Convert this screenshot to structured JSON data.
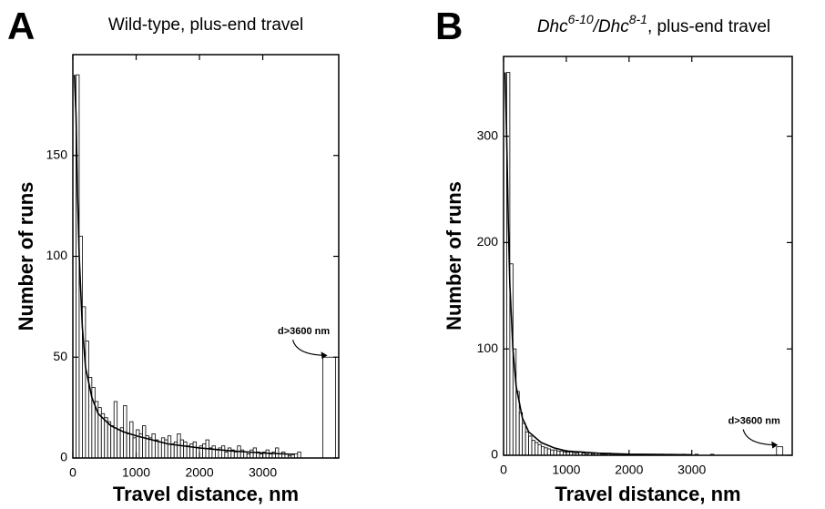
{
  "chart_data": [
    {
      "type": "histogram",
      "panel_label": "A",
      "title": "Wild-type, plus-end travel",
      "xlabel": "Travel distance, nm",
      "ylabel": "Number of runs",
      "bins": [
        0,
        50,
        100,
        150,
        200,
        250,
        300,
        350,
        400,
        450,
        500,
        550,
        600,
        650,
        700,
        750,
        800,
        850,
        900,
        950,
        1000,
        1050,
        1100,
        1150,
        1200,
        1250,
        1300,
        1350,
        1400,
        1450,
        1500,
        1550,
        1600,
        1650,
        1700,
        1750,
        1800,
        1850,
        1900,
        1950,
        2000,
        2050,
        2100,
        2150,
        2200,
        2250,
        2300,
        2350,
        2400,
        2450,
        2500,
        2550,
        2600,
        2650,
        2700,
        2750,
        2800,
        2850,
        2900,
        2950,
        3000,
        3050,
        3100,
        3150,
        3200,
        3250,
        3300,
        3350,
        3400,
        3450,
        3500,
        3550,
        3600,
        3950,
        4150
      ],
      "values": [
        150,
        190,
        110,
        75,
        58,
        40,
        35,
        28,
        25,
        22,
        20,
        18,
        16,
        28,
        14,
        15,
        26,
        12,
        18,
        10,
        14,
        12,
        16,
        11,
        10,
        12,
        9,
        8,
        10,
        9,
        11,
        7,
        8,
        12,
        9,
        8,
        6,
        7,
        8,
        5,
        6,
        7,
        9,
        5,
        6,
        4,
        5,
        6,
        3,
        5,
        4,
        3,
        6,
        4,
        3,
        2,
        4,
        5,
        3,
        2,
        3,
        4,
        2,
        3,
        5,
        2,
        3,
        2,
        1,
        2,
        2,
        3,
        0,
        50
      ],
      "color": "#ffffff",
      "fit": {
        "x": [
          25,
          50,
          75,
          100,
          150,
          200,
          300,
          400,
          600,
          800,
          1000,
          1500,
          2000,
          2500,
          3000,
          3500
        ],
        "values": [
          190,
          170,
          130,
          100,
          65,
          45,
          30,
          22,
          16,
          13,
          11,
          7,
          5,
          3.5,
          2.5,
          1.8
        ]
      },
      "annotation": "d>3600 nm",
      "xlim": [
        0,
        4200
      ],
      "ylim": [
        0,
        200
      ],
      "xticks": [
        0,
        1000,
        2000,
        3000
      ],
      "yticks": [
        0,
        50,
        100,
        150
      ]
    },
    {
      "type": "histogram",
      "panel_label": "B",
      "title_parts": [
        "Dhc",
        "6-10",
        "/Dhc",
        "8-1",
        ", plus-end travel"
      ],
      "xlabel": "Travel distance, nm",
      "ylabel": "Number of runs",
      "bins": [
        0,
        50,
        100,
        150,
        200,
        250,
        300,
        350,
        400,
        450,
        500,
        550,
        600,
        650,
        700,
        750,
        800,
        850,
        900,
        950,
        1000,
        1050,
        1100,
        1150,
        1200,
        1250,
        1300,
        1350,
        1400,
        1450,
        1500,
        1550,
        1600,
        1650,
        1700,
        1750,
        1800,
        1850,
        1900,
        1950,
        2000,
        2050,
        2100,
        2150,
        2200,
        2250,
        2300,
        2350,
        2400,
        2450,
        2500,
        2550,
        2600,
        2650,
        2700,
        2750,
        2800,
        2850,
        2900,
        2950,
        3000,
        3050,
        3100,
        3150,
        3200,
        3250,
        3300,
        3350,
        3400,
        3450,
        3500,
        3550,
        3600,
        4350,
        4450
      ],
      "values": [
        300,
        360,
        180,
        100,
        60,
        40,
        30,
        22,
        18,
        14,
        12,
        10,
        8,
        7,
        6,
        5,
        5,
        4,
        4,
        3,
        3,
        3,
        2,
        2,
        3,
        2,
        1,
        2,
        1,
        2,
        2,
        1,
        1,
        2,
        1,
        1,
        1,
        0,
        1,
        1,
        1,
        0,
        1,
        1,
        0,
        1,
        0,
        1,
        0,
        0,
        1,
        0,
        0,
        1,
        0,
        0,
        0,
        1,
        0,
        0,
        0,
        1,
        0,
        0,
        0,
        0,
        1,
        0,
        0,
        0,
        0,
        0,
        0,
        8
      ],
      "color": "#ffffff",
      "fit": {
        "x": [
          25,
          50,
          75,
          100,
          150,
          200,
          300,
          400,
          600,
          800,
          1000,
          1500,
          2000,
          3000
        ],
        "values": [
          360,
          300,
          220,
          160,
          100,
          65,
          35,
          22,
          12,
          7,
          4,
          2,
          1,
          0.5
        ]
      },
      "annotation": "d>3600 nm",
      "xlim": [
        0,
        4600
      ],
      "ylim": [
        0,
        375
      ],
      "xticks": [
        0,
        1000,
        2000,
        3000
      ],
      "yticks": [
        0,
        100,
        200,
        300
      ]
    }
  ]
}
